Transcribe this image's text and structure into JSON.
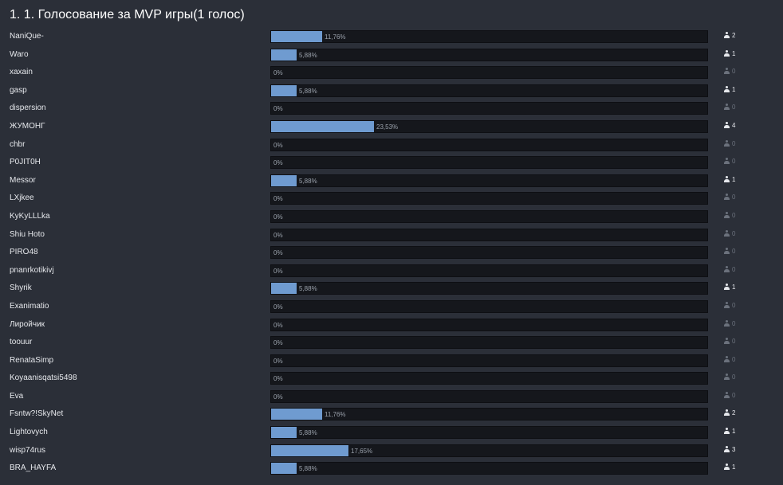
{
  "poll": {
    "title": "1. 1. Голосование за MVP игры(1 голос)",
    "colors": {
      "bar_fill": "#6f9bd0",
      "bar_track": "#15171c",
      "background": "#2b2f38"
    },
    "icon": "user-icon",
    "options": [
      {
        "name": "NaniQue-",
        "percent": "11,76%",
        "fraction": 0.1176,
        "votes": "2"
      },
      {
        "name": "Waro",
        "percent": "5,88%",
        "fraction": 0.0588,
        "votes": "1"
      },
      {
        "name": "xaxain",
        "percent": "0%",
        "fraction": 0,
        "votes": "0"
      },
      {
        "name": "gasp",
        "percent": "5,88%",
        "fraction": 0.0588,
        "votes": "1"
      },
      {
        "name": "dispersion",
        "percent": "0%",
        "fraction": 0,
        "votes": "0"
      },
      {
        "name": "ЖУМОНГ",
        "percent": "23,53%",
        "fraction": 0.2353,
        "votes": "4"
      },
      {
        "name": "chbr",
        "percent": "0%",
        "fraction": 0,
        "votes": "0"
      },
      {
        "name": "P0JIT0H",
        "percent": "0%",
        "fraction": 0,
        "votes": "0"
      },
      {
        "name": "Messor",
        "percent": "5,88%",
        "fraction": 0.0588,
        "votes": "1"
      },
      {
        "name": "LXjkee",
        "percent": "0%",
        "fraction": 0,
        "votes": "0"
      },
      {
        "name": "KyKyLLLka",
        "percent": "0%",
        "fraction": 0,
        "votes": "0"
      },
      {
        "name": "Shiu Hoto",
        "percent": "0%",
        "fraction": 0,
        "votes": "0"
      },
      {
        "name": "PIRO48",
        "percent": "0%",
        "fraction": 0,
        "votes": "0"
      },
      {
        "name": "pnanrkotikivj",
        "percent": "0%",
        "fraction": 0,
        "votes": "0"
      },
      {
        "name": "Shyrik",
        "percent": "5,88%",
        "fraction": 0.0588,
        "votes": "1"
      },
      {
        "name": "Exanimatio",
        "percent": "0%",
        "fraction": 0,
        "votes": "0"
      },
      {
        "name": "Лиройчик",
        "percent": "0%",
        "fraction": 0,
        "votes": "0"
      },
      {
        "name": "toouur",
        "percent": "0%",
        "fraction": 0,
        "votes": "0"
      },
      {
        "name": "RenataSimp",
        "percent": "0%",
        "fraction": 0,
        "votes": "0"
      },
      {
        "name": "Koyaanisqatsi5498",
        "percent": "0%",
        "fraction": 0,
        "votes": "0"
      },
      {
        "name": "Eva",
        "percent": "0%",
        "fraction": 0,
        "votes": "0"
      },
      {
        "name": "Fsntw?!SkyNet",
        "percent": "11,76%",
        "fraction": 0.1176,
        "votes": "2"
      },
      {
        "name": "Lightovych",
        "percent": "5,88%",
        "fraction": 0.0588,
        "votes": "1"
      },
      {
        "name": "wisp74rus",
        "percent": "17,65%",
        "fraction": 0.1765,
        "votes": "3"
      },
      {
        "name": "BRA_HAYFA",
        "percent": "5,88%",
        "fraction": 0.0588,
        "votes": "1"
      }
    ]
  }
}
